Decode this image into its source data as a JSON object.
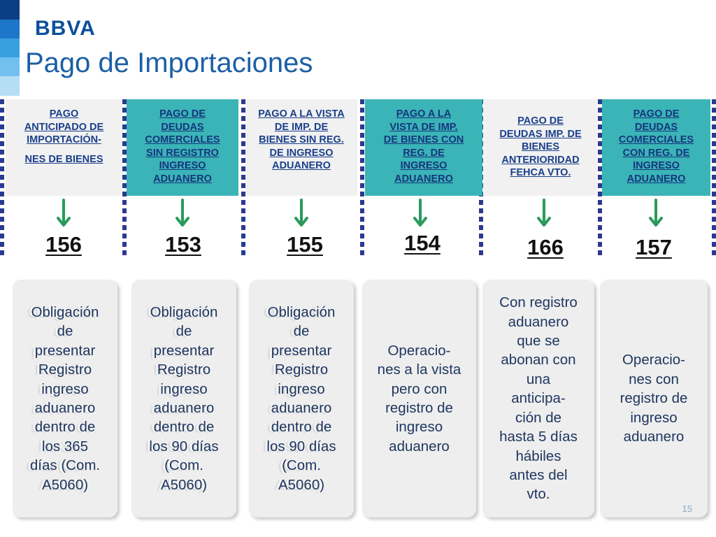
{
  "brand": {
    "logo_text": "BBVA",
    "colors": {
      "primary": "#0b4f9c",
      "title": "#1b5fa6",
      "teal": "#3ab4b6",
      "header_gray": "#f1f1f1",
      "card_bg": "#eeeeee",
      "separator": "#2b3a8f"
    }
  },
  "page": {
    "title": "Pago de Importaciones",
    "number": "15"
  },
  "columns": [
    {
      "header_lines": [
        "PAGO",
        "ANTICIPADO DE",
        "IMPORTACIÓN-",
        "",
        "NES DE BIENES"
      ],
      "header_style": "gray",
      "code": "156",
      "card_lines": [
        "Obligación",
        "de",
        "presentar",
        "Registro",
        "ingreso",
        "aduanero",
        "dentro de",
        "los 365",
        "días (Com.",
        "A5060)"
      ]
    },
    {
      "header_lines": [
        "PAGO DE",
        "DEUDAS",
        "COMERCIALES",
        "SIN REGISTRO",
        "INGRESO",
        "ADUANERO"
      ],
      "header_style": "teal",
      "code": "153",
      "card_lines": [
        "Obligación",
        "de",
        "presentar",
        "Registro",
        "ingreso",
        "aduanero",
        "dentro de",
        "los 90 días",
        "(Com.",
        "A5060)"
      ]
    },
    {
      "header_lines": [
        "PAGO A LA VISTA",
        "DE IMP. DE",
        "BIENES SIN REG.",
        "DE INGRESO",
        "ADUANERO"
      ],
      "header_style": "gray",
      "code": "155",
      "card_lines": [
        "Obligación",
        "de",
        "presentar",
        "Registro",
        "ingreso",
        "aduanero",
        "dentro de",
        "los 90 días",
        "(Com.",
        "A5060)"
      ]
    },
    {
      "header_lines": [
        "PAGO A LA",
        "VISTA DE IMP.",
        "DE BIENES CON",
        "REG. DE",
        "INGRESO",
        "ADUANERO"
      ],
      "header_style": "teal",
      "code": "154",
      "card_lines": [
        "Operacio-",
        "nes a la vista",
        "pero con",
        "registro de",
        "ingreso",
        "aduanero"
      ]
    },
    {
      "header_lines": [
        "PAGO DE",
        "DEUDAS IMP. DE",
        "BIENES",
        "ANTERIORIDAD",
        "FEHCA VTO."
      ],
      "header_style": "gray",
      "code": "166",
      "card_lines": [
        "Con registro",
        "aduanero",
        "que se",
        "abonan con",
        "una",
        "anticipa-",
        "ción de",
        "hasta 5 días",
        "hábiles",
        "antes del",
        "vto."
      ]
    },
    {
      "header_lines": [
        "PAGO DE",
        "DEUDAS",
        "COMERCIALES",
        "CON REG. DE",
        "INGRESO",
        "ADUANERO"
      ],
      "header_style": "teal",
      "code": "157",
      "card_lines": [
        "Operacio-",
        "nes con",
        "registro de",
        "ingreso",
        "aduanero"
      ]
    }
  ]
}
